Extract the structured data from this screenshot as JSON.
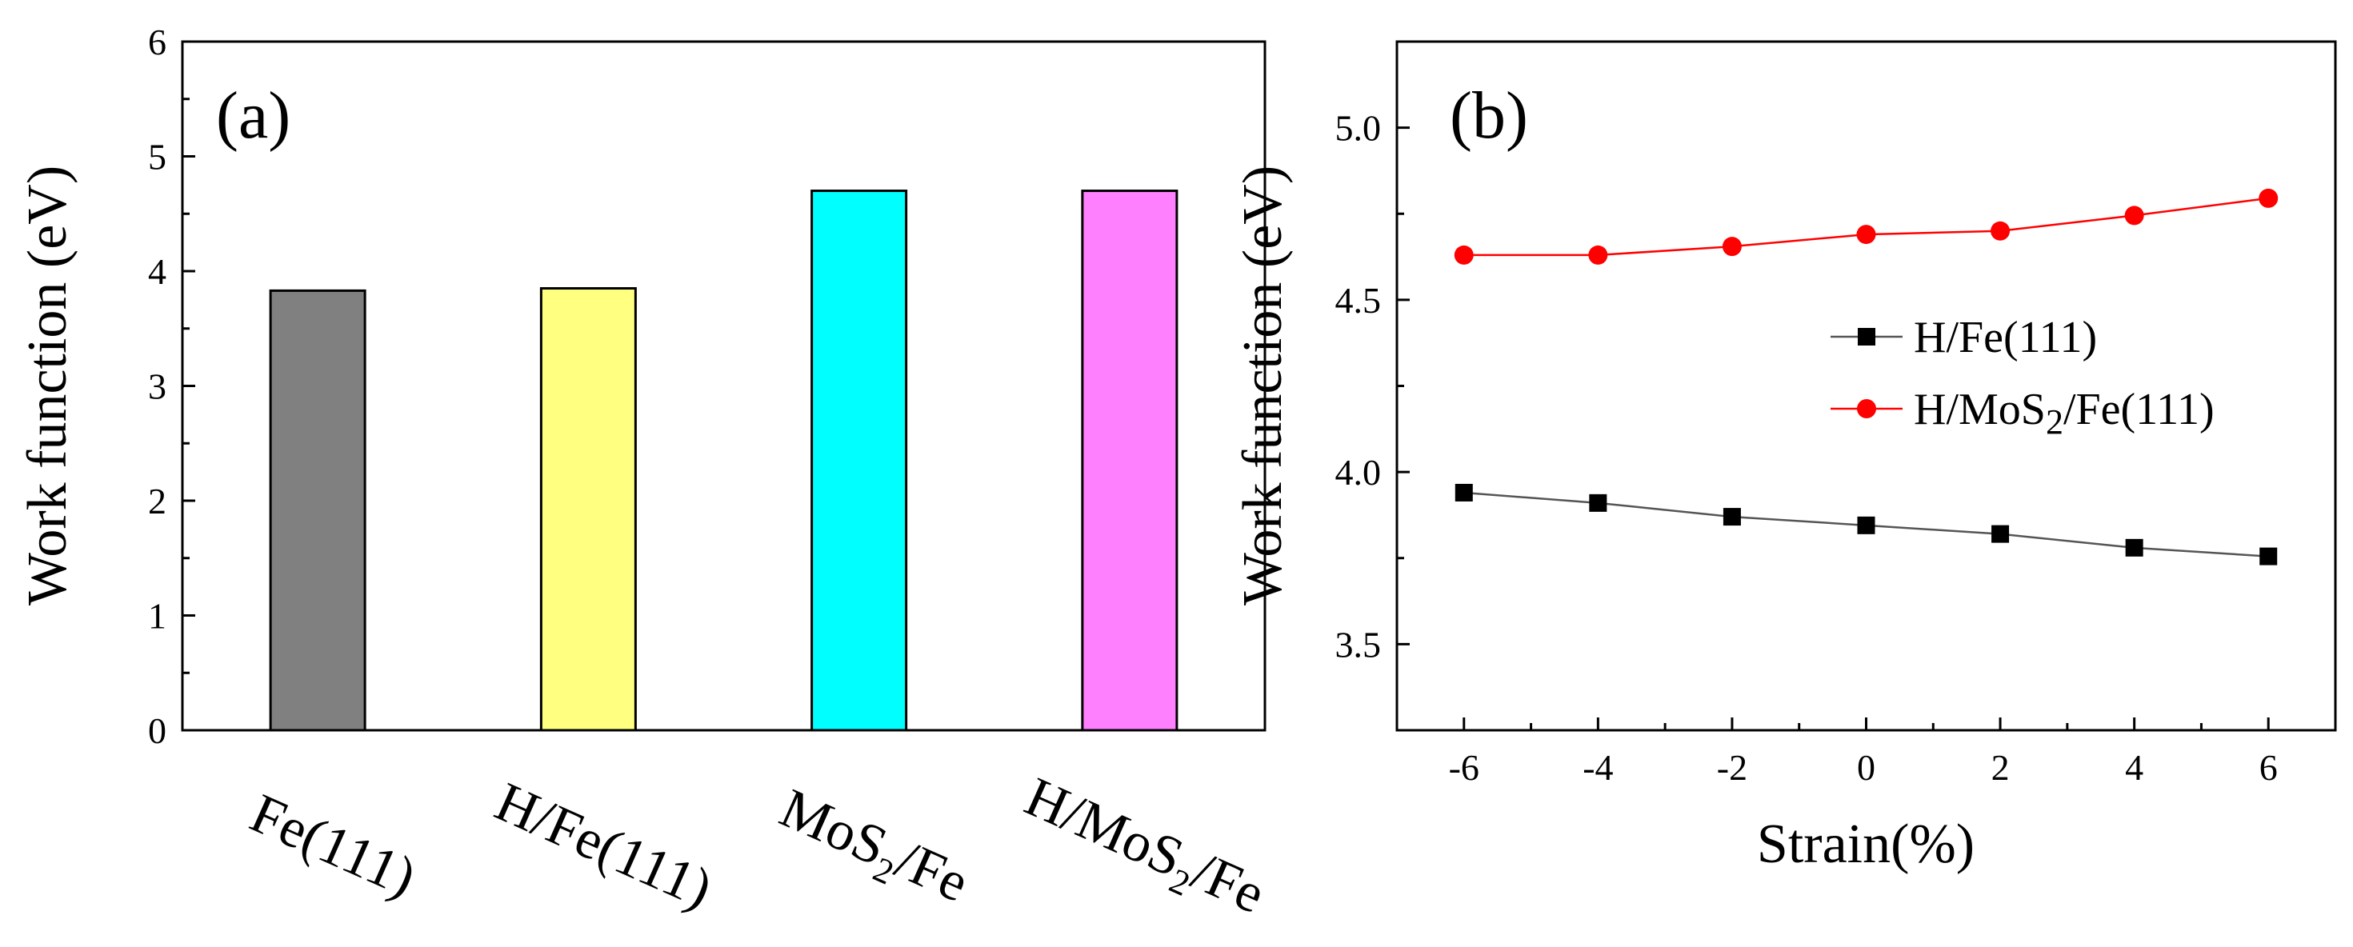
{
  "chart_data": [
    {
      "panel_label": "(a)",
      "type": "bar",
      "ylabel": "Work function (eV)",
      "ylim": [
        0,
        6
      ],
      "yticks": [
        "0",
        "1",
        "2",
        "3",
        "4",
        "5",
        "6"
      ],
      "categories": [
        {
          "main": "Fe(111)",
          "sub": "",
          "after": ""
        },
        {
          "main": "H/Fe(111)",
          "sub": "",
          "after": ""
        },
        {
          "main": "MoS",
          "sub": "2",
          "after": "/Fe"
        },
        {
          "main": "H/MoS",
          "sub": "2",
          "after": "/Fe"
        }
      ],
      "values": [
        3.83,
        3.85,
        4.7,
        4.7
      ],
      "colors": [
        "#808080",
        "#ffff80",
        "#00ffff",
        "#ff80ff"
      ]
    },
    {
      "panel_label": "(b)",
      "type": "line",
      "xlabel": "Strain(%)",
      "ylabel": "Work function (eV)",
      "xlim": [
        -7,
        7
      ],
      "ylim": [
        3.25,
        5.25
      ],
      "xticks": [
        "-6",
        "-4",
        "-2",
        "0",
        "2",
        "4",
        "6"
      ],
      "yticks": [
        "3.5",
        "4.0",
        "4.5",
        "5.0"
      ],
      "x": [
        -6,
        -4,
        -2,
        0,
        2,
        4,
        6
      ],
      "series": [
        {
          "name": "H/Fe(111)",
          "legend_main": "H/Fe(111)",
          "legend_sub": "",
          "legend_after": "",
          "marker": "square",
          "color": "#000000",
          "line_color": "#555555",
          "values": [
            3.94,
            3.91,
            3.87,
            3.845,
            3.82,
            3.78,
            3.755
          ]
        },
        {
          "name": "H/MoS2/Fe(111)",
          "legend_main": "H/MoS",
          "legend_sub": "2",
          "legend_after": "/Fe(111)",
          "marker": "circle",
          "color": "#ff0000",
          "line_color": "#ff0000",
          "values": [
            4.63,
            4.63,
            4.655,
            4.69,
            4.7,
            4.745,
            4.795
          ]
        }
      ]
    }
  ]
}
